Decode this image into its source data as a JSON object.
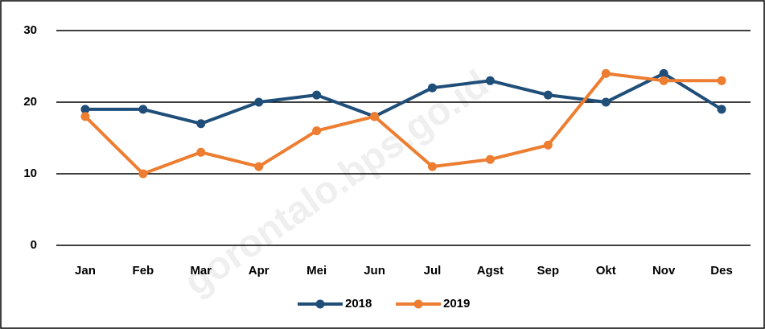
{
  "chart_data": {
    "type": "line",
    "categories": [
      "Jan",
      "Feb",
      "Mar",
      "Apr",
      "Mei",
      "Jun",
      "Jul",
      "Agst",
      "Sep",
      "Okt",
      "Nov",
      "Des"
    ],
    "series": [
      {
        "name": "2018",
        "color": "#1f4e79",
        "values": [
          19,
          19,
          17,
          20,
          21,
          18,
          22,
          23,
          21,
          20,
          24,
          19
        ]
      },
      {
        "name": "2019",
        "color": "#ed7d31",
        "values": [
          18,
          10,
          13,
          11,
          16,
          18,
          11,
          12,
          14,
          24,
          23,
          23
        ]
      }
    ],
    "ylim": [
      0,
      30
    ],
    "yticks": [
      0,
      10,
      20,
      30
    ],
    "grid": true,
    "legend": "bottom",
    "watermark": "gorontalo.bps.go.id"
  }
}
